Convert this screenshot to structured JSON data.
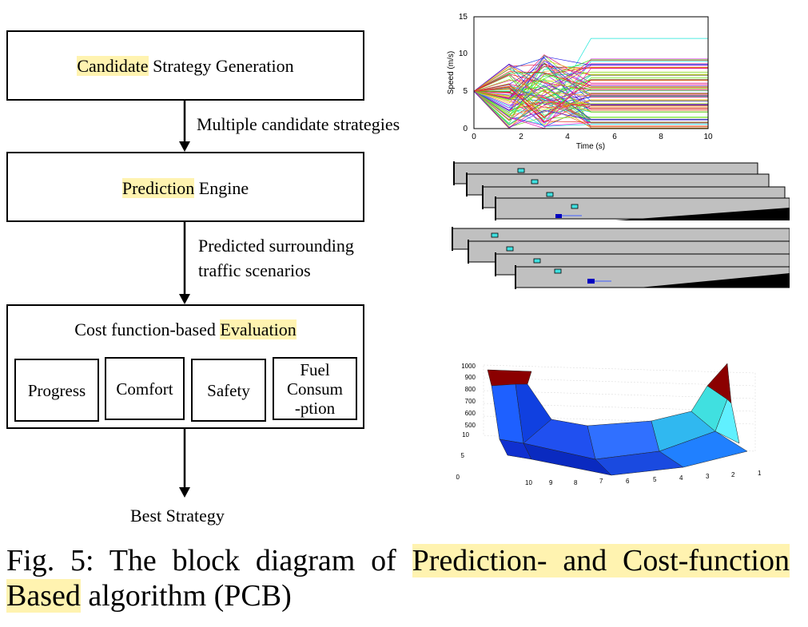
{
  "boxes": {
    "candidate": {
      "hl": "Candidate",
      "rest": " Strategy Generation"
    },
    "prediction": {
      "hl": "Prediction",
      "rest": " Engine"
    },
    "evaluation": {
      "pre": "Cost function-based ",
      "hl": "Evaluation"
    }
  },
  "criteria": {
    "progress": "Progress",
    "comfort": "Comfort",
    "safety": "Safety",
    "fuel": [
      "Fuel",
      "Consum",
      "-ption"
    ]
  },
  "arrows": {
    "multiple": "Multiple candidate strategies",
    "predicted_line1": "Predicted surrounding",
    "predicted_line2": "traffic scenarios",
    "output": "Best Strategy"
  },
  "caption": {
    "prefix": "Fig. 5: The block diagram of ",
    "highlight1": "Prediction- and Cost-function",
    "highlight2": "Based",
    "suffix": " algorithm (PCB)"
  },
  "speed_plot": {
    "ylabel": "Speed (m/s)",
    "xlabel": "Time (s)",
    "yticks": [
      "0",
      "5",
      "10",
      "15"
    ],
    "xticks": [
      "0",
      "2",
      "4",
      "6",
      "8",
      "10"
    ]
  },
  "surface_plot": {
    "zticks": [
      "1000",
      "900",
      "800",
      "700",
      "600",
      "500"
    ],
    "depth_ticks": [
      "10",
      "5",
      "0"
    ],
    "front_ticks": [
      "10",
      "9",
      "8",
      "7",
      "6",
      "5",
      "4",
      "3",
      "2",
      "1"
    ]
  },
  "colors": {
    "highlight": "#fff3b0",
    "lane_gray": "#c0c0c0",
    "vehicle": "#40e0e0"
  }
}
